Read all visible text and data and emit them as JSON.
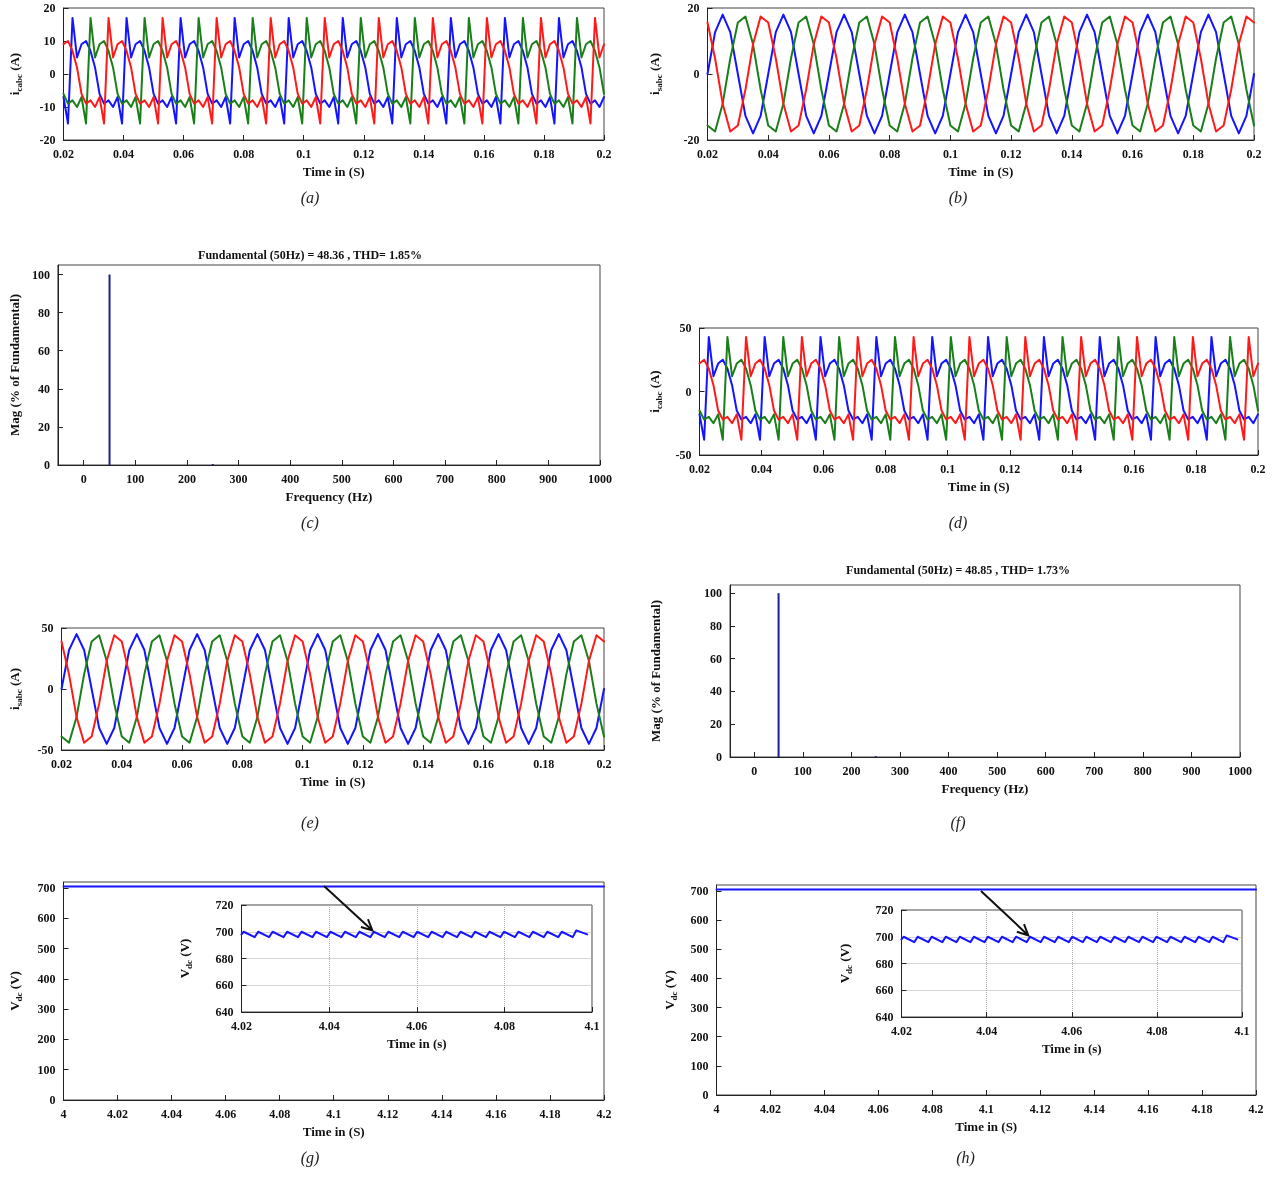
{
  "chart_data": [
    {
      "type": "line",
      "xlabel": "Time in (S)",
      "ylabel": "i$_{cabc}$ (A)",
      "annotations": [
        "(a)"
      ],
      "xlim": [
        0.02,
        0.2
      ],
      "xticks": [
        0.02,
        0.04,
        0.06,
        0.08,
        0.1,
        0.12,
        0.14,
        0.16,
        0.18,
        0.2
      ],
      "ylim": [
        -20,
        20
      ],
      "yticks": [
        -20,
        -10,
        0,
        10,
        20
      ],
      "x": [
        0.02,
        0.0215,
        0.023,
        0.0245,
        0.026,
        0.0275,
        0.029,
        0.0305,
        0.032,
        0.0335,
        0.035,
        0.0365,
        0.038,
        0.0395,
        0.041,
        0.0425,
        0.044,
        0.0455,
        0.047,
        0.0485,
        0.05,
        0.0515,
        0.053,
        0.0545,
        0.056,
        0.0575,
        0.059,
        0.0605,
        0.062,
        0.0635,
        0.065,
        0.0665,
        0.068,
        0.0695,
        0.071,
        0.0725,
        0.074,
        0.0755,
        0.077,
        0.0785,
        0.08,
        0.0815,
        0.083,
        0.0845,
        0.086,
        0.0875,
        0.089,
        0.0905,
        0.092,
        0.0935,
        0.095,
        0.0965,
        0.098,
        0.0995,
        0.101,
        0.1025,
        0.104,
        0.1055,
        0.107,
        0.1085,
        0.11,
        0.1115,
        0.113,
        0.1145,
        0.116,
        0.1175,
        0.119,
        0.1205,
        0.122,
        0.1235,
        0.125,
        0.1265,
        0.128,
        0.1295,
        0.131,
        0.1325,
        0.134,
        0.1355,
        0.137,
        0.1385,
        0.14,
        0.1415,
        0.143,
        0.1445,
        0.146,
        0.1475,
        0.149,
        0.1505,
        0.152,
        0.1535,
        0.155,
        0.1565,
        0.158,
        0.1595,
        0.161,
        0.1625,
        0.164,
        0.1655,
        0.167,
        0.1685,
        0.17,
        0.1715,
        0.173,
        0.1745,
        0.176,
        0.1775,
        0.179,
        0.1805,
        0.182,
        0.1835,
        0.185,
        0.1865,
        0.188,
        0.1895,
        0.191,
        0.1925,
        0.194,
        0.1955,
        0.197,
        0.1985,
        0.2
      ],
      "series": [
        {
          "color": "#1414ff",
          "values": [
            -7,
            -15,
            17,
            5,
            9,
            10,
            7,
            2,
            -6,
            -9,
            -8,
            -10,
            -7,
            -15,
            17,
            5,
            9,
            10,
            7,
            2,
            -6,
            -9,
            -8,
            -10,
            -7,
            -15,
            17,
            5,
            9,
            10,
            7,
            2,
            -6,
            -9,
            -8,
            -10,
            -7,
            -15,
            17,
            5,
            9,
            10,
            7,
            2,
            -6,
            -9,
            -8,
            -10,
            -7,
            -15,
            17,
            5,
            9,
            10,
            7,
            2,
            -6,
            -9,
            -8,
            -10,
            -7,
            -15,
            17,
            5,
            9,
            10,
            7,
            2,
            -6,
            -9,
            -8,
            -10,
            -7,
            -15,
            17,
            5,
            9,
            10,
            7,
            2,
            -6,
            -9,
            -8,
            -10,
            -7,
            -15,
            17,
            5,
            9,
            10,
            7,
            2,
            -6,
            -9,
            -8,
            -10,
            -7,
            -15,
            17,
            5,
            9,
            10,
            7,
            2,
            -6,
            -9,
            -8,
            -10,
            -7,
            -15,
            17,
            5,
            9,
            10,
            7,
            2,
            -6,
            -9,
            -8,
            -10,
            -7
          ]
        },
        {
          "color": "#1a7f1a",
          "values": [
            -6,
            -9,
            -8,
            -10,
            -7,
            -15,
            17,
            5,
            9,
            10,
            7,
            2,
            -6,
            -9,
            -8,
            -10,
            -7,
            -15,
            17,
            5,
            9,
            10,
            7,
            2,
            -6,
            -9,
            -8,
            -10,
            -7,
            -15,
            17,
            5,
            9,
            10,
            7,
            2,
            -6,
            -9,
            -8,
            -10,
            -7,
            -15,
            17,
            5,
            9,
            10,
            7,
            2,
            -6,
            -9,
            -8,
            -10,
            -7,
            -15,
            17,
            5,
            9,
            10,
            7,
            2,
            -6,
            -9,
            -8,
            -10,
            -7,
            -15,
            17,
            5,
            9,
            10,
            7,
            2,
            -6,
            -9,
            -8,
            -10,
            -7,
            -15,
            17,
            5,
            9,
            10,
            7,
            2,
            -6,
            -9,
            -8,
            -10,
            -7,
            -15,
            17,
            5,
            9,
            10,
            7,
            2,
            -6,
            -9,
            -8,
            -10,
            -7,
            -15,
            17,
            5,
            9,
            10,
            7,
            2,
            -6,
            -9,
            -8,
            -10,
            -7,
            -15,
            17,
            5,
            9,
            10,
            7,
            2,
            -6
          ]
        },
        {
          "color": "#ff1a1a",
          "values": [
            9,
            10,
            7,
            2,
            -6,
            -9,
            -8,
            -10,
            -7,
            -15,
            17,
            5,
            9,
            10,
            7,
            2,
            -6,
            -9,
            -8,
            -10,
            -7,
            -15,
            17,
            5,
            9,
            10,
            7,
            2,
            -6,
            -9,
            -8,
            -10,
            -7,
            -15,
            17,
            5,
            9,
            10,
            7,
            2,
            -6,
            -9,
            -8,
            -10,
            -7,
            -15,
            17,
            5,
            9,
            10,
            7,
            2,
            -6,
            -9,
            -8,
            -10,
            -7,
            -15,
            17,
            5,
            9,
            10,
            7,
            2,
            -6,
            -9,
            -8,
            -10,
            -7,
            -15,
            17,
            5,
            9,
            10,
            7,
            2,
            -6,
            -9,
            -8,
            -10,
            -7,
            -15,
            17,
            5,
            9,
            10,
            7,
            2,
            -6,
            -9,
            -8,
            -10,
            -7,
            -15,
            17,
            5,
            9,
            10,
            7,
            2,
            -6,
            -9,
            -8,
            -10,
            -7,
            -15,
            17,
            5,
            9,
            10,
            7,
            2,
            -6,
            -9,
            -8,
            -10,
            -7,
            -15,
            17,
            5,
            9
          ]
        }
      ]
    },
    {
      "type": "line",
      "xlabel": "Time  in (S)",
      "ylabel": "i$_{sabc}$ (A)",
      "annotations": [
        "(b)"
      ],
      "xlim": [
        0.02,
        0.2
      ],
      "xticks": [
        0.02,
        0.04,
        0.06,
        0.08,
        0.1,
        0.12,
        0.14,
        0.16,
        0.18,
        0.2
      ],
      "ylim": [
        -20,
        20
      ],
      "yticks": [
        -20,
        0,
        20
      ],
      "x": [
        0.02,
        0.0225,
        0.025,
        0.0275,
        0.03,
        0.0325,
        0.035,
        0.0375,
        0.04,
        0.0425,
        0.045,
        0.0475,
        0.05,
        0.0525,
        0.055,
        0.0575,
        0.06,
        0.0625,
        0.065,
        0.0675,
        0.07,
        0.0725,
        0.075,
        0.0775,
        0.08,
        0.0825,
        0.085,
        0.0875,
        0.09,
        0.0925,
        0.095,
        0.0975,
        0.1,
        0.1025,
        0.105,
        0.1075,
        0.11,
        0.1125,
        0.115,
        0.1175,
        0.12,
        0.1225,
        0.125,
        0.1275,
        0.13,
        0.1325,
        0.135,
        0.1375,
        0.14,
        0.1425,
        0.145,
        0.1475,
        0.15,
        0.1525,
        0.155,
        0.1575,
        0.16,
        0.1625,
        0.165,
        0.1675,
        0.17,
        0.1725,
        0.175,
        0.1775,
        0.18,
        0.1825,
        0.185,
        0.1875,
        0.19,
        0.1925,
        0.195,
        0.1975,
        0.2
      ],
      "series": [
        {
          "color": "#1414ff",
          "values": [
            0,
            12.7,
            18,
            12.7,
            0,
            -12.7,
            -18,
            -12.7,
            0,
            12.7,
            18,
            12.7,
            0,
            -12.7,
            -18,
            -12.7,
            0,
            12.7,
            18,
            12.7,
            0,
            -12.7,
            -18,
            -12.7,
            0,
            12.7,
            18,
            12.7,
            0,
            -12.7,
            -18,
            -12.7,
            0,
            12.7,
            18,
            12.7,
            0,
            -12.7,
            -18,
            -12.7,
            0,
            12.7,
            18,
            12.7,
            0,
            -12.7,
            -18,
            -12.7,
            0,
            12.7,
            18,
            12.7,
            0,
            -12.7,
            -18,
            -12.7,
            0,
            12.7,
            18,
            12.7,
            0,
            -12.7,
            -18,
            -12.7,
            0,
            12.7,
            18,
            12.7,
            0,
            -12.7,
            -18,
            -12.7,
            0
          ]
        },
        {
          "color": "#1a7f1a",
          "values": [
            -15.6,
            -17.4,
            -9,
            4.7,
            15.6,
            17.4,
            9,
            -4.7,
            -15.6,
            -17.4,
            -9,
            4.7,
            15.6,
            17.4,
            9,
            -4.7,
            -15.6,
            -17.4,
            -9,
            4.7,
            15.6,
            17.4,
            9,
            -4.7,
            -15.6,
            -17.4,
            -9,
            4.7,
            15.6,
            17.4,
            9,
            -4.7,
            -15.6,
            -17.4,
            -9,
            4.7,
            15.6,
            17.4,
            9,
            -4.7,
            -15.6,
            -17.4,
            -9,
            4.7,
            15.6,
            17.4,
            9,
            -4.7,
            -15.6,
            -17.4,
            -9,
            4.7,
            15.6,
            17.4,
            9,
            -4.7,
            -15.6,
            -17.4,
            -9,
            4.7,
            15.6,
            17.4,
            9,
            -4.7,
            -15.6,
            -17.4,
            -9,
            4.7,
            15.6,
            17.4,
            9,
            -4.7,
            -15.6
          ]
        },
        {
          "color": "#ff1a1a",
          "values": [
            15.6,
            4.7,
            -9,
            -17.4,
            -15.6,
            -4.7,
            9,
            17.4,
            15.6,
            4.7,
            -9,
            -17.4,
            -15.6,
            -4.7,
            9,
            17.4,
            15.6,
            4.7,
            -9,
            -17.4,
            -15.6,
            -4.7,
            9,
            17.4,
            15.6,
            4.7,
            -9,
            -17.4,
            -15.6,
            -4.7,
            9,
            17.4,
            15.6,
            4.7,
            -9,
            -17.4,
            -15.6,
            -4.7,
            9,
            17.4,
            15.6,
            4.7,
            -9,
            -17.4,
            -15.6,
            -4.7,
            9,
            17.4,
            15.6,
            4.7,
            -9,
            -17.4,
            -15.6,
            -4.7,
            9,
            17.4,
            15.6,
            4.7,
            -9,
            -17.4,
            -15.6,
            -4.7,
            9,
            17.4,
            15.6,
            4.7,
            -9,
            -17.4,
            -15.6,
            -4.7,
            9,
            17.4,
            15.6
          ]
        }
      ]
    },
    {
      "type": "bar",
      "title": "Fundamental (50Hz) = 48.36 , THD= 1.85%",
      "xlabel": "Frequency (Hz)",
      "ylabel": "Mag (% of Fundamental)",
      "annotations": [
        "(c)"
      ],
      "xlim": [
        -50,
        1000
      ],
      "xticks": [
        0,
        100,
        200,
        300,
        400,
        500,
        600,
        700,
        800,
        900,
        1000
      ],
      "ylim": [
        0,
        105
      ],
      "yticks": [
        0,
        20,
        40,
        60,
        80,
        100
      ],
      "x": [
        50,
        250
      ],
      "series": [
        {
          "color": "#1c1c9c",
          "values": [
            100,
            0.5
          ]
        }
      ]
    },
    {
      "type": "line",
      "xlabel": "Time in (S)",
      "ylabel": "i$_{cabc}$ (A)",
      "annotations": [
        "(d)"
      ],
      "xlim": [
        0.02,
        0.2
      ],
      "xticks": [
        0.02,
        0.04,
        0.06,
        0.08,
        0.1,
        0.12,
        0.14,
        0.16,
        0.18,
        0.2
      ],
      "ylim": [
        -50,
        50
      ],
      "yticks": [
        -50,
        0,
        50
      ],
      "x": [
        0.02,
        0.0215,
        0.023,
        0.0245,
        0.026,
        0.0275,
        0.029,
        0.0305,
        0.032,
        0.0335,
        0.035,
        0.0365,
        0.038,
        0.0395,
        0.041,
        0.0425,
        0.044,
        0.0455,
        0.047,
        0.0485,
        0.05,
        0.0515,
        0.053,
        0.0545,
        0.056,
        0.0575,
        0.059,
        0.0605,
        0.062,
        0.0635,
        0.065,
        0.0665,
        0.068,
        0.0695,
        0.071,
        0.0725,
        0.074,
        0.0755,
        0.077,
        0.0785,
        0.08,
        0.0815,
        0.083,
        0.0845,
        0.086,
        0.0875,
        0.089,
        0.0905,
        0.092,
        0.0935,
        0.095,
        0.0965,
        0.098,
        0.0995,
        0.101,
        0.1025,
        0.104,
        0.1055,
        0.107,
        0.1085,
        0.11,
        0.1115,
        0.113,
        0.1145,
        0.116,
        0.1175,
        0.119,
        0.1205,
        0.122,
        0.1235,
        0.125,
        0.1265,
        0.128,
        0.1295,
        0.131,
        0.1325,
        0.134,
        0.1355,
        0.137,
        0.1385,
        0.14,
        0.1415,
        0.143,
        0.1445,
        0.146,
        0.1475,
        0.149,
        0.1505,
        0.152,
        0.1535,
        0.155,
        0.1565,
        0.158,
        0.1595,
        0.161,
        0.1625,
        0.164,
        0.1655,
        0.167,
        0.1685,
        0.17,
        0.1715,
        0.173,
        0.1745,
        0.176,
        0.1775,
        0.179,
        0.1805,
        0.182,
        0.1835,
        0.185,
        0.1865,
        0.188,
        0.1895,
        0.191,
        0.1925,
        0.194,
        0.1955,
        0.197,
        0.1985,
        0.2
      ],
      "series": [
        {
          "color": "#1414ff",
          "values": [
            -18,
            -38,
            43,
            12,
            22,
            25,
            18,
            5,
            -15,
            -22,
            -20,
            -25,
            -18,
            -38,
            43,
            12,
            22,
            25,
            18,
            5,
            -15,
            -22,
            -20,
            -25,
            -18,
            -38,
            43,
            12,
            22,
            25,
            18,
            5,
            -15,
            -22,
            -20,
            -25,
            -18,
            -38,
            43,
            12,
            22,
            25,
            18,
            5,
            -15,
            -22,
            -20,
            -25,
            -18,
            -38,
            43,
            12,
            22,
            25,
            18,
            5,
            -15,
            -22,
            -20,
            -25,
            -18,
            -38,
            43,
            12,
            22,
            25,
            18,
            5,
            -15,
            -22,
            -20,
            -25,
            -18,
            -38,
            43,
            12,
            22,
            25,
            18,
            5,
            -15,
            -22,
            -20,
            -25,
            -18,
            -38,
            43,
            12,
            22,
            25,
            18,
            5,
            -15,
            -22,
            -20,
            -25,
            -18,
            -38,
            43,
            12,
            22,
            25,
            18,
            5,
            -15,
            -22,
            -20,
            -25,
            -18,
            -38,
            43,
            12,
            22,
            25,
            18,
            5,
            -15,
            -22,
            -20,
            -25,
            -18
          ]
        },
        {
          "color": "#1a7f1a",
          "values": [
            -15,
            -22,
            -20,
            -25,
            -18,
            -38,
            43,
            12,
            22,
            25,
            18,
            5,
            -15,
            -22,
            -20,
            -25,
            -18,
            -38,
            43,
            12,
            22,
            25,
            18,
            5,
            -15,
            -22,
            -20,
            -25,
            -18,
            -38,
            43,
            12,
            22,
            25,
            18,
            5,
            -15,
            -22,
            -20,
            -25,
            -18,
            -38,
            43,
            12,
            22,
            25,
            18,
            5,
            -15,
            -22,
            -20,
            -25,
            -18,
            -38,
            43,
            12,
            22,
            25,
            18,
            5,
            -15,
            -22,
            -20,
            -25,
            -18,
            -38,
            43,
            12,
            22,
            25,
            18,
            5,
            -15,
            -22,
            -20,
            -25,
            -18,
            -38,
            43,
            12,
            22,
            25,
            18,
            5,
            -15,
            -22,
            -20,
            -25,
            -18,
            -38,
            43,
            12,
            22,
            25,
            18,
            5,
            -15,
            -22,
            -20,
            -25,
            -18,
            -38,
            43,
            12,
            22,
            25,
            18,
            5,
            -15,
            -22,
            -20,
            -25,
            -18,
            -38,
            43,
            12,
            22,
            25,
            18,
            5,
            -15
          ]
        },
        {
          "color": "#ff1a1a",
          "values": [
            22,
            25,
            18,
            5,
            -15,
            -22,
            -20,
            -25,
            -18,
            -38,
            43,
            12,
            22,
            25,
            18,
            5,
            -15,
            -22,
            -20,
            -25,
            -18,
            -38,
            43,
            12,
            22,
            25,
            18,
            5,
            -15,
            -22,
            -20,
            -25,
            -18,
            -38,
            43,
            12,
            22,
            25,
            18,
            5,
            -15,
            -22,
            -20,
            -25,
            -18,
            -38,
            43,
            12,
            22,
            25,
            18,
            5,
            -15,
            -22,
            -20,
            -25,
            -18,
            -38,
            43,
            12,
            22,
            25,
            18,
            5,
            -15,
            -22,
            -20,
            -25,
            -18,
            -38,
            43,
            12,
            22,
            25,
            18,
            5,
            -15,
            -22,
            -20,
            -25,
            -18,
            -38,
            43,
            12,
            22,
            25,
            18,
            5,
            -15,
            -22,
            -20,
            -25,
            -18,
            -38,
            43,
            12,
            22,
            25,
            18,
            5,
            -15,
            -22,
            -20,
            -25,
            -18,
            -38,
            43,
            12,
            22,
            25,
            18,
            5,
            -15,
            -22,
            -20,
            -25,
            -18,
            -38,
            43,
            12,
            22
          ]
        }
      ]
    },
    {
      "type": "line",
      "xlabel": "Time  in (S)",
      "ylabel": "i$_{sabc}$ (A)",
      "annotations": [
        "(e)"
      ],
      "xlim": [
        0.02,
        0.2
      ],
      "xticks": [
        0.02,
        0.04,
        0.06,
        0.08,
        0.1,
        0.12,
        0.14,
        0.16,
        0.18,
        0.2
      ],
      "ylim": [
        -50,
        50
      ],
      "yticks": [
        -50,
        0,
        50
      ],
      "x": [
        0.02,
        0.0225,
        0.025,
        0.0275,
        0.03,
        0.0325,
        0.035,
        0.0375,
        0.04,
        0.0425,
        0.045,
        0.0475,
        0.05,
        0.0525,
        0.055,
        0.0575,
        0.06,
        0.0625,
        0.065,
        0.0675,
        0.07,
        0.0725,
        0.075,
        0.0775,
        0.08,
        0.0825,
        0.085,
        0.0875,
        0.09,
        0.0925,
        0.095,
        0.0975,
        0.1,
        0.1025,
        0.105,
        0.1075,
        0.11,
        0.1125,
        0.115,
        0.1175,
        0.12,
        0.1225,
        0.125,
        0.1275,
        0.13,
        0.1325,
        0.135,
        0.1375,
        0.14,
        0.1425,
        0.145,
        0.1475,
        0.15,
        0.1525,
        0.155,
        0.1575,
        0.16,
        0.1625,
        0.165,
        0.1675,
        0.17,
        0.1725,
        0.175,
        0.1775,
        0.18,
        0.1825,
        0.185,
        0.1875,
        0.19,
        0.1925,
        0.195,
        0.1975,
        0.2
      ],
      "series": [
        {
          "color": "#1414ff",
          "values": [
            0,
            32,
            45,
            32,
            0,
            -32,
            -45,
            -32,
            0,
            32,
            45,
            32,
            0,
            -32,
            -45,
            -32,
            0,
            32,
            45,
            32,
            0,
            -32,
            -45,
            -32,
            0,
            32,
            45,
            32,
            0,
            -32,
            -45,
            -32,
            0,
            32,
            45,
            32,
            0,
            -32,
            -45,
            -32,
            0,
            32,
            45,
            32,
            0,
            -32,
            -45,
            -32,
            0,
            32,
            45,
            32,
            0,
            -32,
            -45,
            -32,
            0,
            32,
            45,
            32,
            0,
            -32,
            -45,
            -32,
            0,
            32,
            45,
            32,
            0,
            -32,
            -45,
            -32,
            0
          ]
        },
        {
          "color": "#1a7f1a",
          "values": [
            -39,
            -44,
            -23,
            12,
            39,
            44,
            23,
            -12,
            -39,
            -44,
            -23,
            12,
            39,
            44,
            23,
            -12,
            -39,
            -44,
            -23,
            12,
            39,
            44,
            23,
            -12,
            -39,
            -44,
            -23,
            12,
            39,
            44,
            23,
            -12,
            -39,
            -44,
            -23,
            12,
            39,
            44,
            23,
            -12,
            -39,
            -44,
            -23,
            12,
            39,
            44,
            23,
            -12,
            -39,
            -44,
            -23,
            12,
            39,
            44,
            23,
            -12,
            -39,
            -44,
            -23,
            12,
            39,
            44,
            23,
            -12,
            -39,
            -44,
            -23,
            12,
            39,
            44,
            23,
            -12,
            -39
          ]
        },
        {
          "color": "#ff1a1a",
          "values": [
            39,
            12,
            -23,
            -44,
            -39,
            -12,
            23,
            44,
            39,
            12,
            -23,
            -44,
            -39,
            -12,
            23,
            44,
            39,
            12,
            -23,
            -44,
            -39,
            -12,
            23,
            44,
            39,
            12,
            -23,
            -44,
            -39,
            -12,
            23,
            44,
            39,
            12,
            -23,
            -44,
            -39,
            -12,
            23,
            44,
            39,
            12,
            -23,
            -44,
            -39,
            -12,
            23,
            44,
            39,
            12,
            -23,
            -44,
            -39,
            -12,
            23,
            44,
            39,
            12,
            -23,
            -44,
            -39,
            -12,
            23,
            44,
            39,
            12,
            -23,
            -44,
            -39,
            -12,
            23,
            44,
            39
          ]
        }
      ]
    },
    {
      "type": "bar",
      "title": "Fundamental (50Hz) = 48.85 , THD= 1.73%",
      "xlabel": "Frequency (Hz)",
      "ylabel": "Mag (% of Fundamental)",
      "annotations": [
        "(f)"
      ],
      "xlim": [
        -50,
        1000
      ],
      "xticks": [
        0,
        100,
        200,
        300,
        400,
        500,
        600,
        700,
        800,
        900,
        1000
      ],
      "ylim": [
        0,
        105
      ],
      "yticks": [
        0,
        20,
        40,
        60,
        80,
        100
      ],
      "x": [
        50,
        250
      ],
      "series": [
        {
          "color": "#1c1c9c",
          "values": [
            100,
            0.5
          ]
        }
      ]
    },
    {
      "type": "line",
      "xlabel": "Time in (S)",
      "ylabel": "V$_{dc}$ (V)",
      "annotations": [
        "(g)"
      ],
      "xlim": [
        4,
        4.2
      ],
      "xticks": [
        4,
        4.02,
        4.04,
        4.06,
        4.08,
        4.1,
        4.12,
        4.14,
        4.16,
        4.18,
        4.2
      ],
      "ylim": [
        0,
        720
      ],
      "yticks": [
        0,
        100,
        200,
        300,
        400,
        500,
        600,
        700
      ],
      "x": [
        4,
        4.01,
        4.02,
        4.03,
        4.04,
        4.05,
        4.06,
        4.07,
        4.08,
        4.09,
        4.1,
        4.11,
        4.12,
        4.13,
        4.14,
        4.15,
        4.16,
        4.17,
        4.18,
        4.19,
        4.2
      ],
      "series": [
        {
          "color": "#1414ff",
          "values": [
            705,
            705,
            705,
            705,
            705,
            705,
            705,
            705,
            705,
            705,
            705,
            705,
            705,
            705,
            705,
            705,
            705,
            705,
            705,
            705,
            705
          ]
        }
      ]
    },
    {
      "type": "line",
      "xlabel": "Time in (s)",
      "ylabel": "V$_{dc}$ (V)",
      "grid": true,
      "xlim": [
        4.02,
        4.1
      ],
      "xticks": [
        4.02,
        4.04,
        4.06,
        4.08,
        4.1
      ],
      "ylim": [
        640,
        720
      ],
      "yticks": [
        640,
        660,
        680,
        700,
        720
      ],
      "x": [
        4.02,
        4.0205,
        4.023,
        4.0238,
        4.0263,
        4.0271,
        4.0296,
        4.0304,
        4.0329,
        4.0337,
        4.0362,
        4.037,
        4.0395,
        4.0403,
        4.0428,
        4.0436,
        4.0461,
        4.0469,
        4.0494,
        4.0502,
        4.0527,
        4.0535,
        4.056,
        4.0568,
        4.0593,
        4.0601,
        4.0626,
        4.0634,
        4.0659,
        4.0667,
        4.0692,
        4.07,
        4.0725,
        4.0733,
        4.0758,
        4.0766,
        4.0791,
        4.0799,
        4.0824,
        4.0832,
        4.0857,
        4.0865,
        4.089,
        4.0898,
        4.0923,
        4.0931,
        4.0956,
        4.0964,
        4.0989
      ],
      "series": [
        {
          "color": "#1414ff",
          "values": [
            698,
            700,
            696,
            700,
            696,
            700,
            696,
            700,
            696,
            700,
            696,
            700,
            696,
            700,
            696,
            700,
            696,
            700,
            696,
            700,
            696,
            700,
            696,
            700,
            696,
            700,
            696,
            700,
            696,
            700,
            696,
            700,
            696,
            700,
            696,
            700,
            696,
            700,
            696,
            700,
            696,
            700,
            696,
            700,
            696,
            700,
            696,
            701,
            698
          ]
        }
      ]
    },
    {
      "type": "line",
      "xlabel": "Time in (S)",
      "ylabel": "V$_{dc}$ (V)",
      "annotations": [
        "(h)"
      ],
      "xlim": [
        4,
        4.2
      ],
      "xticks": [
        4,
        4.02,
        4.04,
        4.06,
        4.08,
        4.1,
        4.12,
        4.14,
        4.16,
        4.18,
        4.2
      ],
      "ylim": [
        0,
        720
      ],
      "yticks": [
        0,
        100,
        200,
        300,
        400,
        500,
        600,
        700
      ],
      "x": [
        4,
        4.01,
        4.02,
        4.03,
        4.04,
        4.05,
        4.06,
        4.07,
        4.08,
        4.09,
        4.1,
        4.11,
        4.12,
        4.13,
        4.14,
        4.15,
        4.16,
        4.17,
        4.18,
        4.19,
        4.2
      ],
      "series": [
        {
          "color": "#1414ff",
          "values": [
            705,
            705,
            705,
            705,
            705,
            705,
            705,
            705,
            705,
            705,
            705,
            705,
            705,
            705,
            705,
            705,
            705,
            705,
            705,
            705,
            705
          ]
        }
      ]
    },
    {
      "type": "line",
      "xlabel": "Time in (s)",
      "ylabel": "V$_{dc}$ (V)",
      "grid": true,
      "xlim": [
        4.02,
        4.1
      ],
      "xticks": [
        4.02,
        4.04,
        4.06,
        4.08,
        4.1
      ],
      "ylim": [
        640,
        720
      ],
      "yticks": [
        640,
        660,
        680,
        700,
        720
      ],
      "x": [
        4.02,
        4.0205,
        4.023,
        4.0238,
        4.0263,
        4.0271,
        4.0296,
        4.0304,
        4.0329,
        4.0337,
        4.0362,
        4.037,
        4.0395,
        4.0403,
        4.0428,
        4.0436,
        4.0461,
        4.0469,
        4.0494,
        4.0502,
        4.0527,
        4.0535,
        4.056,
        4.0568,
        4.0593,
        4.0601,
        4.0626,
        4.0634,
        4.0659,
        4.0667,
        4.0692,
        4.07,
        4.0725,
        4.0733,
        4.0758,
        4.0766,
        4.0791,
        4.0799,
        4.0824,
        4.0832,
        4.0857,
        4.0865,
        4.089,
        4.0898,
        4.0923,
        4.0931,
        4.0956,
        4.0964,
        4.0989
      ],
      "series": [
        {
          "color": "#1414ff",
          "values": [
            698,
            700,
            696,
            700,
            696,
            700,
            696,
            700,
            696,
            700,
            696,
            700,
            696,
            700,
            696,
            700,
            696,
            700,
            696,
            700,
            696,
            700,
            696,
            700,
            696,
            700,
            696,
            700,
            696,
            700,
            696,
            700,
            696,
            700,
            696,
            700,
            696,
            700,
            696,
            700,
            696,
            700,
            696,
            700,
            696,
            700,
            696,
            701,
            698
          ]
        }
      ]
    }
  ]
}
